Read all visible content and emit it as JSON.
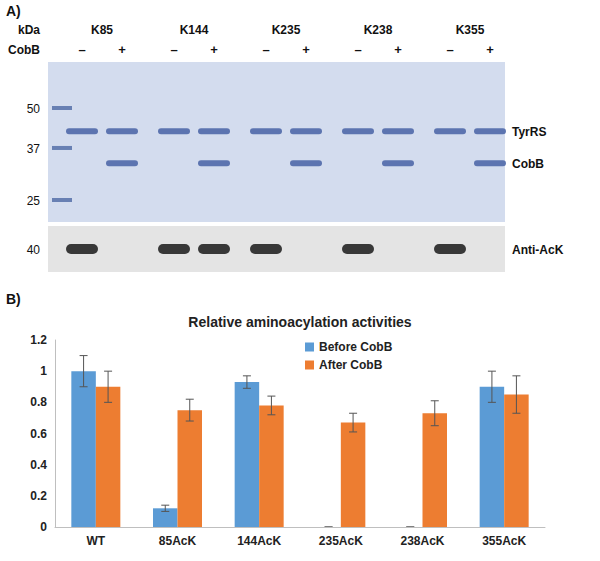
{
  "panel_a": {
    "label": "A)",
    "axis_title": "kDa",
    "row_label": "CobB",
    "lane_groups": [
      "K85",
      "K144",
      "K235",
      "K238",
      "K355"
    ],
    "treatments": [
      "–",
      "+"
    ],
    "markers": [
      50,
      37,
      25
    ],
    "blot_marker": 40,
    "bands": [
      {
        "label": "TyrRS",
        "kda": 42,
        "lanes": [
          true,
          true,
          true,
          true,
          true,
          true,
          true,
          true,
          true,
          true
        ]
      },
      {
        "label": "CobB",
        "kda": 33,
        "lanes": [
          false,
          true,
          false,
          true,
          false,
          true,
          false,
          true,
          false,
          true
        ]
      }
    ],
    "blot": {
      "label": "Anti-AcK",
      "kda": 40,
      "lanes": [
        true,
        false,
        true,
        true,
        true,
        false,
        true,
        false,
        true,
        false
      ]
    }
  },
  "chart_data": {
    "type": "bar",
    "title": "Relative aminoacylation activities",
    "annotations": [
      {
        "text": "B)"
      }
    ],
    "categories": [
      "WT",
      "85AcK",
      "144AcK",
      "235AcK",
      "238AcK",
      "355AcK"
    ],
    "series": [
      {
        "name": "Before CobB",
        "color": "#5b9bd5",
        "values": [
          1.0,
          0.12,
          0.93,
          0,
          0,
          0.9
        ],
        "errors": [
          0.1,
          0.02,
          0.04,
          0,
          0,
          0.1
        ]
      },
      {
        "name": "After CobB",
        "color": "#ed7d31",
        "values": [
          0.9,
          0.75,
          0.78,
          0.67,
          0.73,
          0.85
        ],
        "errors": [
          0.1,
          0.07,
          0.06,
          0.06,
          0.08,
          0.12
        ]
      }
    ],
    "ylim": [
      0,
      1.2
    ],
    "yticks": [
      0,
      0.2,
      0.4,
      0.6,
      0.8,
      1,
      1.2
    ],
    "grid": false,
    "legend": "top"
  }
}
